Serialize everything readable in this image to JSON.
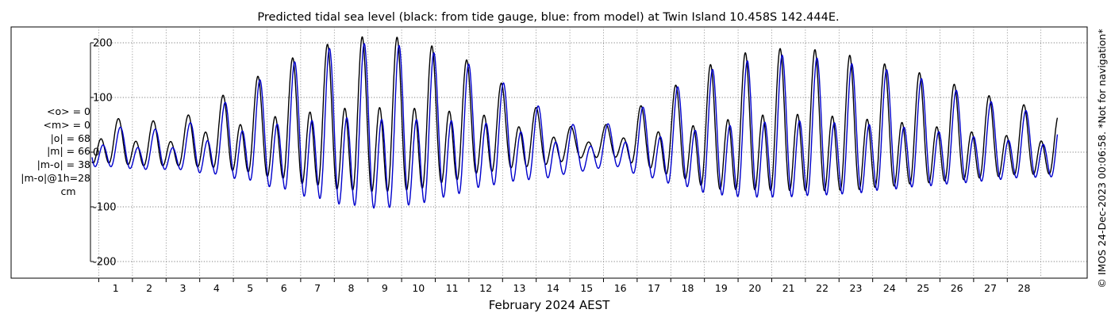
{
  "chart_data": {
    "type": "line",
    "title": "Predicted tidal sea level (black: from tide gauge, blue: from model) at Twin Island 10.458S 142.444E.",
    "xlabel": "February 2024 AEST",
    "ylabel": "",
    "xlim": [
      0.3,
      29.0
    ],
    "ylim": [
      -200,
      200
    ],
    "yticks": [
      -200,
      -100,
      0,
      100,
      200
    ],
    "xticks": [
      1,
      2,
      3,
      4,
      5,
      6,
      7,
      8,
      9,
      10,
      11,
      12,
      13,
      14,
      15,
      16,
      17,
      18,
      19,
      20,
      21,
      22,
      23,
      24,
      25,
      26,
      27,
      28
    ],
    "grid": true,
    "x_start_day": 0.3,
    "x_end_day": 29.0,
    "series": [
      {
        "name": "tide gauge",
        "color": "#000000",
        "sample_days": [
          0.8,
          1.8,
          2.8,
          3.8,
          4.8,
          5.8,
          6.8,
          7.8,
          8.8,
          9.8,
          10.8,
          11.8,
          12.8,
          13.8,
          14.8,
          15.8,
          16.8,
          17.8,
          18.8,
          19.8,
          20.8,
          21.8,
          22.8,
          23.8,
          24.8,
          25.8,
          26.8,
          27.8,
          28.8
        ],
        "high_peaks": [
          60,
          55,
          55,
          90,
          120,
          155,
          180,
          200,
          205,
          200,
          180,
          155,
          110,
          70,
          40,
          50,
          85,
          120,
          155,
          175,
          182,
          180,
          170,
          155,
          140,
          120,
          100,
          85,
          65
        ],
        "low_troughs": [
          -35,
          -40,
          -40,
          -50,
          -65,
          -85,
          -105,
          -120,
          -125,
          -120,
          -100,
          -75,
          -55,
          -40,
          -20,
          -20,
          -50,
          -80,
          -110,
          -115,
          -118,
          -118,
          -115,
          -105,
          -95,
          -85,
          -75,
          -65,
          -60
        ]
      },
      {
        "name": "model",
        "color": "#0000cc",
        "sample_days": [
          0.8,
          1.8,
          2.8,
          3.8,
          4.8,
          5.8,
          6.8,
          7.8,
          8.8,
          9.8,
          10.8,
          11.8,
          12.8,
          13.8,
          14.8,
          15.8,
          16.8,
          17.8,
          18.8,
          19.8,
          20.8,
          21.8,
          22.8,
          23.8,
          24.8,
          25.8,
          26.8,
          27.8,
          28.8
        ],
        "high_peaks": [
          45,
          40,
          40,
          70,
          110,
          145,
          170,
          190,
          190,
          185,
          170,
          150,
          115,
          75,
          45,
          50,
          80,
          115,
          145,
          160,
          170,
          165,
          155,
          145,
          130,
          110,
          90,
          75,
          60
        ],
        "low_troughs": [
          -40,
          -45,
          -45,
          -60,
          -80,
          -105,
          -130,
          -150,
          -158,
          -150,
          -130,
          -105,
          -85,
          -70,
          -50,
          -40,
          -70,
          -95,
          -120,
          -128,
          -130,
          -125,
          -120,
          -110,
          -100,
          -90,
          -80,
          -70,
          -65
        ]
      }
    ]
  },
  "stats": {
    "mean_obs": "<o> = 0",
    "mean_model": "<m> = 0",
    "abs_obs": "|o| = 68",
    "abs_model": "|m| = 66",
    "abs_diff": "|m-o| = 38",
    "abs_diff_1h": "|m-o|@1h=28",
    "unit": "cm"
  },
  "credit": "© IMOS 24-Dec-2023 00:06:58. *Not for navigation*"
}
